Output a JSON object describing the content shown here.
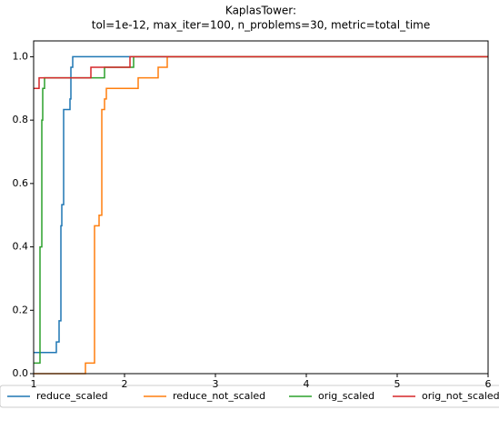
{
  "chart_data": {
    "type": "step",
    "title": "KaplasTower:",
    "subtitle": "tol=1e-12, max_iter=100, n_problems=30, metric=total_time",
    "xlim": [
      1,
      6
    ],
    "ylim": [
      0,
      1.05
    ],
    "xticks": [
      1,
      2,
      3,
      4,
      5,
      6
    ],
    "yticks": [
      {
        "value": 0,
        "label": "0.0"
      },
      0.2,
      0.4,
      0.6,
      0.8,
      {
        "value": 1,
        "label": "1.0"
      }
    ],
    "legend": "bottom",
    "series": [
      {
        "name": "reduce_scaled",
        "color": "#1f77b4",
        "x": [
          1,
          1.25,
          1.28,
          1.3,
          1.31,
          1.33,
          1.35,
          1.4,
          1.41,
          1.43,
          6
        ],
        "values": [
          0.0667,
          0.1,
          0.1667,
          0.4667,
          0.5333,
          0.8333,
          0.8333,
          0.8667,
          0.9667,
          1,
          1
        ]
      },
      {
        "name": "reduce_not_scaled",
        "color": "#ff7f0e",
        "x": [
          1,
          1.57,
          1.67,
          1.72,
          1.75,
          1.78,
          1.8,
          2.15,
          2.37,
          2.47,
          6
        ],
        "values": [
          0,
          0.0333,
          0.4667,
          0.5,
          0.8333,
          0.8667,
          0.9,
          0.9333,
          0.9667,
          1,
          1
        ]
      },
      {
        "name": "orig_scaled",
        "color": "#2ca02c",
        "x": [
          1,
          1.07,
          1.09,
          1.1,
          1.12,
          1.78,
          2.1,
          6
        ],
        "values": [
          0.0333,
          0.4,
          0.8,
          0.9,
          0.9333,
          0.9667,
          1,
          1
        ]
      },
      {
        "name": "orig_not_scaled",
        "color": "#d62728",
        "x": [
          1,
          1.06,
          1.63,
          2.06,
          6
        ],
        "values": [
          0.9,
          0.9333,
          0.9667,
          1,
          1
        ]
      }
    ]
  }
}
